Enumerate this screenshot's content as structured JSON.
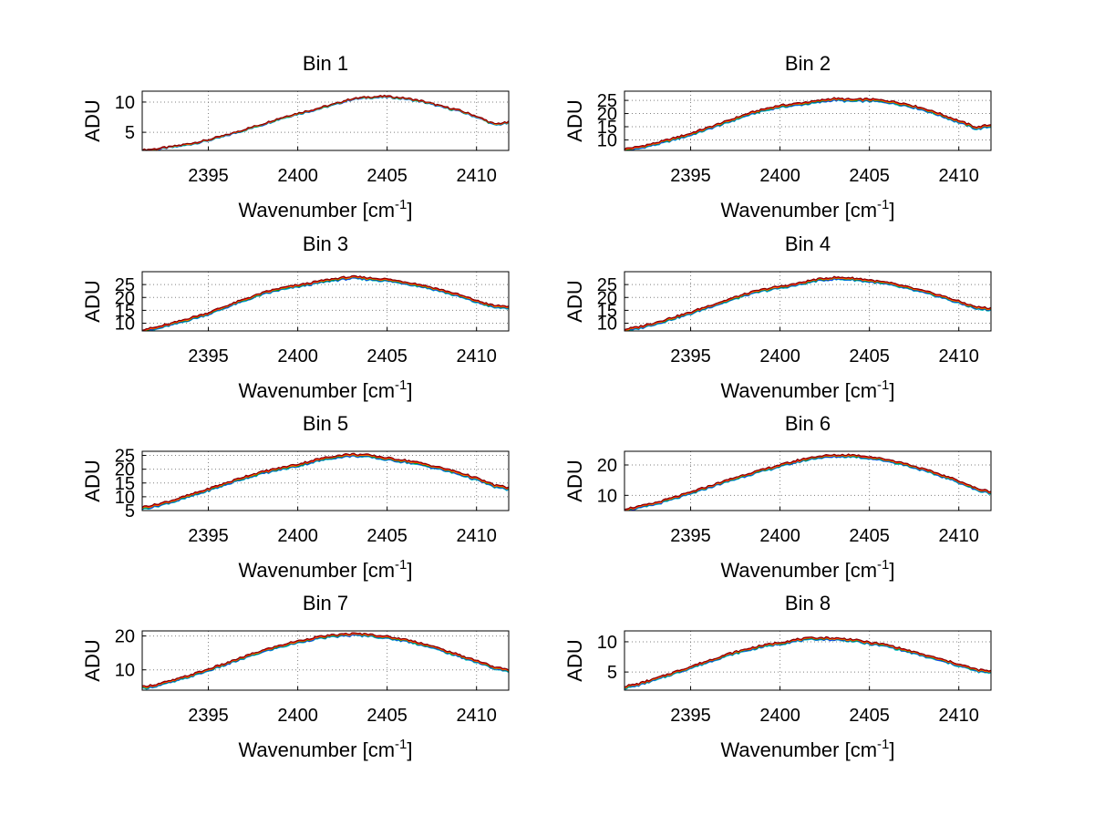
{
  "chart_data": [
    {
      "type": "line",
      "title": "Bin 1",
      "xlabel": "Wavenumber [cm",
      "xlabel_sup": "-1",
      "xlabel_end": "]",
      "ylabel": "ADU",
      "xlim": [
        2391.3,
        2411.8
      ],
      "ylim": [
        2,
        11.8
      ],
      "xticks": [
        2395,
        2400,
        2405,
        2410
      ],
      "yticks": [
        5,
        10
      ],
      "grid": true,
      "colors": [
        "#00c0c0",
        "#2020ff",
        "#00a000",
        "#ff8000",
        "#ff0000",
        "#800000"
      ],
      "x": [
        2391.3,
        2392,
        2393,
        2394,
        2395,
        2396,
        2397,
        2398,
        2399,
        2400,
        2401,
        2402,
        2403,
        2404,
        2405,
        2406,
        2407,
        2408,
        2409,
        2410,
        2411,
        2411.8
      ],
      "y": [
        2.0,
        2.2,
        2.6,
        3.1,
        3.7,
        4.5,
        5.4,
        6.3,
        7.3,
        8.1,
        8.8,
        9.6,
        10.5,
        10.8,
        10.9,
        10.6,
        10.1,
        9.3,
        8.6,
        7.6,
        6.3,
        6.6
      ],
      "series": [
        {
          "offset": -0.15
        },
        {
          "offset": -0.1
        },
        {
          "offset": -0.05
        },
        {
          "offset": 0.0
        },
        {
          "offset": 0.05
        },
        {
          "offset": 0.1
        }
      ]
    },
    {
      "type": "line",
      "title": "Bin 2",
      "xlabel": "Wavenumber [cm",
      "xlabel_sup": "-1",
      "xlabel_end": "]",
      "ylabel": "ADU",
      "xlim": [
        2391.3,
        2411.8
      ],
      "ylim": [
        6,
        28.5
      ],
      "xticks": [
        2395,
        2400,
        2405,
        2410
      ],
      "yticks": [
        10,
        15,
        20,
        25
      ],
      "grid": true,
      "colors": [
        "#00c0c0",
        "#2020ff",
        "#00a000",
        "#ff8000",
        "#ff0000",
        "#800000"
      ],
      "x": [
        2391.3,
        2392,
        2393,
        2394,
        2395,
        2396,
        2397,
        2398,
        2399,
        2400,
        2401,
        2402,
        2403,
        2404,
        2405,
        2406,
        2407,
        2408,
        2409,
        2410,
        2411,
        2411.8
      ],
      "y": [
        6.3,
        7.0,
        8.5,
        10.3,
        12.2,
        14.5,
        16.8,
        19.3,
        21.3,
        22.8,
        23.6,
        24.5,
        25.5,
        25.0,
        25.2,
        24.6,
        23.5,
        21.8,
        19.5,
        17.0,
        14.5,
        15.5
      ],
      "series": [
        {
          "offset": -0.6
        },
        {
          "offset": -0.4
        },
        {
          "offset": -0.2
        },
        {
          "offset": 0.0
        },
        {
          "offset": 0.2
        },
        {
          "offset": 0.4
        }
      ]
    },
    {
      "type": "line",
      "title": "Bin 3",
      "xlabel": "Wavenumber [cm",
      "xlabel_sup": "-1",
      "xlabel_end": "]",
      "ylabel": "ADU",
      "xlim": [
        2391.3,
        2411.8
      ],
      "ylim": [
        7,
        30
      ],
      "xticks": [
        2395,
        2400,
        2405,
        2410
      ],
      "yticks": [
        10,
        15,
        20,
        25
      ],
      "grid": true,
      "colors": [
        "#00c0c0",
        "#2020ff",
        "#00a000",
        "#ff8000",
        "#ff0000",
        "#800000"
      ],
      "x": [
        2391.3,
        2392,
        2393,
        2394,
        2395,
        2396,
        2397,
        2398,
        2399,
        2400,
        2401,
        2402,
        2403,
        2404,
        2405,
        2406,
        2407,
        2408,
        2409,
        2410,
        2411,
        2411.8
      ],
      "y": [
        7.2,
        8.0,
        9.8,
        11.8,
        13.8,
        16.5,
        19.0,
        21.5,
        23.3,
        24.5,
        25.8,
        27.0,
        27.8,
        27.3,
        26.8,
        25.8,
        24.5,
        22.8,
        20.8,
        18.5,
        16.5,
        16.3
      ],
      "series": [
        {
          "offset": -0.6
        },
        {
          "offset": -0.4
        },
        {
          "offset": -0.2
        },
        {
          "offset": 0.0
        },
        {
          "offset": 0.2
        },
        {
          "offset": 0.4
        }
      ]
    },
    {
      "type": "line",
      "title": "Bin 4",
      "xlabel": "Wavenumber [cm",
      "xlabel_sup": "-1",
      "xlabel_end": "]",
      "ylabel": "ADU",
      "xlim": [
        2391.3,
        2411.8
      ],
      "ylim": [
        7,
        30
      ],
      "xticks": [
        2395,
        2400,
        2405,
        2410
      ],
      "yticks": [
        10,
        15,
        20,
        25
      ],
      "grid": true,
      "colors": [
        "#00c0c0",
        "#2020ff",
        "#00a000",
        "#ff8000",
        "#ff0000",
        "#800000"
      ],
      "x": [
        2391.3,
        2392,
        2393,
        2394,
        2395,
        2396,
        2397,
        2398,
        2399,
        2400,
        2401,
        2402,
        2403,
        2404,
        2405,
        2406,
        2407,
        2408,
        2409,
        2410,
        2411,
        2411.8
      ],
      "y": [
        7.3,
        8.2,
        10.0,
        12.0,
        14.0,
        16.5,
        18.7,
        21.0,
        22.8,
        24.0,
        25.2,
        26.8,
        27.5,
        27.3,
        26.5,
        25.5,
        24.0,
        22.3,
        20.5,
        18.2,
        16.0,
        15.5
      ],
      "series": [
        {
          "offset": -0.6
        },
        {
          "offset": -0.4
        },
        {
          "offset": -0.2
        },
        {
          "offset": 0.0
        },
        {
          "offset": 0.2
        },
        {
          "offset": 0.4
        }
      ]
    },
    {
      "type": "line",
      "title": "Bin 5",
      "xlabel": "Wavenumber [cm",
      "xlabel_sup": "-1",
      "xlabel_end": "]",
      "ylabel": "ADU",
      "xlim": [
        2391.3,
        2411.8
      ],
      "ylim": [
        5,
        26.5
      ],
      "xticks": [
        2395,
        2400,
        2405,
        2410
      ],
      "yticks": [
        5,
        10,
        15,
        20,
        25
      ],
      "grid": true,
      "colors": [
        "#00c0c0",
        "#2020ff",
        "#00a000",
        "#ff8000",
        "#ff0000",
        "#800000"
      ],
      "x": [
        2391.3,
        2392,
        2393,
        2394,
        2395,
        2396,
        2397,
        2398,
        2399,
        2400,
        2401,
        2402,
        2403,
        2404,
        2405,
        2406,
        2407,
        2408,
        2409,
        2410,
        2411,
        2411.8
      ],
      "y": [
        6.0,
        6.8,
        8.5,
        10.5,
        12.6,
        14.8,
        17.0,
        18.8,
        20.2,
        21.5,
        23.2,
        24.5,
        25.2,
        24.8,
        23.8,
        23.0,
        21.8,
        20.3,
        18.6,
        16.5,
        14.0,
        13.0
      ],
      "series": [
        {
          "offset": -0.6
        },
        {
          "offset": -0.4
        },
        {
          "offset": -0.2
        },
        {
          "offset": 0.0
        },
        {
          "offset": 0.2
        },
        {
          "offset": 0.4
        }
      ]
    },
    {
      "type": "line",
      "title": "Bin 6",
      "xlabel": "Wavenumber [cm",
      "xlabel_sup": "-1",
      "xlabel_end": "]",
      "ylabel": "ADU",
      "xlim": [
        2391.3,
        2411.8
      ],
      "ylim": [
        5,
        24.5
      ],
      "xticks": [
        2395,
        2400,
        2405,
        2410
      ],
      "yticks": [
        10,
        20
      ],
      "grid": true,
      "colors": [
        "#00c0c0",
        "#2020ff",
        "#00a000",
        "#ff8000",
        "#ff0000",
        "#800000"
      ],
      "x": [
        2391.3,
        2392,
        2393,
        2394,
        2395,
        2396,
        2397,
        2398,
        2399,
        2400,
        2401,
        2402,
        2403,
        2404,
        2405,
        2406,
        2407,
        2408,
        2409,
        2410,
        2411,
        2411.8
      ],
      "y": [
        5.3,
        6.0,
        7.3,
        9.0,
        10.8,
        12.8,
        14.7,
        16.6,
        18.2,
        19.8,
        21.3,
        22.6,
        23.0,
        23.1,
        22.5,
        21.6,
        20.3,
        18.5,
        16.6,
        14.6,
        12.0,
        11.0
      ],
      "series": [
        {
          "offset": -0.5
        },
        {
          "offset": -0.33
        },
        {
          "offset": -0.16
        },
        {
          "offset": 0.0
        },
        {
          "offset": 0.16
        },
        {
          "offset": 0.33
        }
      ]
    },
    {
      "type": "line",
      "title": "Bin 7",
      "xlabel": "Wavenumber [cm",
      "xlabel_sup": "-1",
      "xlabel_end": "]",
      "ylabel": "ADU",
      "xlim": [
        2391.3,
        2411.8
      ],
      "ylim": [
        4,
        21.5
      ],
      "xticks": [
        2395,
        2400,
        2405,
        2410
      ],
      "yticks": [
        10,
        20
      ],
      "grid": true,
      "colors": [
        "#00c0c0",
        "#2020ff",
        "#00a000",
        "#ff8000",
        "#ff0000",
        "#800000"
      ],
      "x": [
        2391.3,
        2392,
        2393,
        2394,
        2395,
        2396,
        2397,
        2398,
        2399,
        2400,
        2401,
        2402,
        2403,
        2404,
        2405,
        2406,
        2407,
        2408,
        2409,
        2410,
        2411,
        2411.8
      ],
      "y": [
        4.8,
        5.4,
        6.7,
        8.3,
        10.0,
        11.8,
        13.7,
        15.5,
        17.0,
        18.3,
        19.4,
        20.1,
        20.5,
        20.3,
        19.6,
        18.8,
        17.6,
        16.0,
        14.2,
        12.6,
        10.6,
        9.8
      ],
      "series": [
        {
          "offset": -0.45
        },
        {
          "offset": -0.3
        },
        {
          "offset": -0.15
        },
        {
          "offset": 0.0
        },
        {
          "offset": 0.15
        },
        {
          "offset": 0.3
        }
      ]
    },
    {
      "type": "line",
      "title": "Bin 8",
      "xlabel": "Wavenumber [cm",
      "xlabel_sup": "-1",
      "xlabel_end": "]",
      "ylabel": "ADU",
      "xlim": [
        2391.3,
        2411.8
      ],
      "ylim": [
        2,
        11.8
      ],
      "xticks": [
        2395,
        2400,
        2405,
        2410
      ],
      "yticks": [
        5,
        10
      ],
      "grid": true,
      "colors": [
        "#00c0c0",
        "#2020ff",
        "#00a000",
        "#ff8000",
        "#ff0000",
        "#800000"
      ],
      "x": [
        2391.3,
        2392,
        2393,
        2394,
        2395,
        2396,
        2397,
        2398,
        2399,
        2400,
        2401,
        2402,
        2403,
        2404,
        2405,
        2406,
        2407,
        2408,
        2409,
        2410,
        2411,
        2411.8
      ],
      "y": [
        2.5,
        2.9,
        3.8,
        4.8,
        5.8,
        6.8,
        7.8,
        8.6,
        9.3,
        9.8,
        10.3,
        10.6,
        10.5,
        10.3,
        9.8,
        9.4,
        8.6,
        7.8,
        7.0,
        6.2,
        5.3,
        5.0
      ],
      "series": [
        {
          "offset": -0.25
        },
        {
          "offset": -0.16
        },
        {
          "offset": -0.08
        },
        {
          "offset": 0.0
        },
        {
          "offset": 0.08
        },
        {
          "offset": 0.16
        }
      ]
    }
  ]
}
